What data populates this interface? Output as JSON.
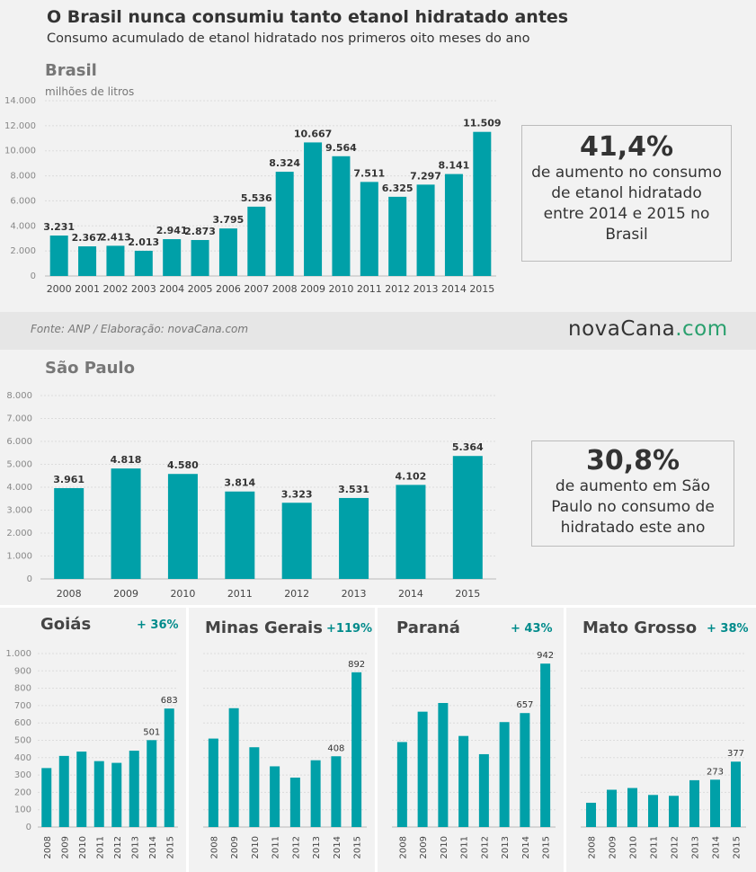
{
  "header": {
    "title": "O Brasil nunca consumiu tanto etanol hidratado antes",
    "subtitle": "Consumo acumulado de etanol hidratado nos primeros oito meses do ano"
  },
  "brasil": {
    "region": "Brasil",
    "unit": "milhões de litros",
    "callout": {
      "percent": "41,4%",
      "text": "de aumento no consumo de etanol hidratado entre 2014 e 2015 no Brasil"
    }
  },
  "source": {
    "text": "Fonte: ANP / Elaboração: novaCana.com",
    "logo_main": "novaCana",
    "logo_suffix": ".com"
  },
  "sao_paulo": {
    "region": "São Paulo",
    "callout": {
      "percent": "30,8%",
      "text": "de aumento em São Paulo no consumo de hidratado este ano"
    }
  },
  "small_panels": [
    {
      "region": "Goiás",
      "growth": "+ 36%"
    },
    {
      "region": "Minas Gerais",
      "growth": "+119%"
    },
    {
      "region": "Paraná",
      "growth": "+ 43%"
    },
    {
      "region": "Mato Grosso",
      "growth": "+ 38%"
    }
  ],
  "colors": {
    "bar": "#00a0a8",
    "panel": "#f2f2f2",
    "accent": "#008b8b",
    "logo_accent": "#2aa06e"
  },
  "chart_data": [
    {
      "type": "bar",
      "title": "Brasil",
      "ylabel": "milhões de litros",
      "categories": [
        "2000",
        "2001",
        "2002",
        "2003",
        "2004",
        "2005",
        "2006",
        "2007",
        "2008",
        "2009",
        "2010",
        "2011",
        "2012",
        "2013",
        "2014",
        "2015"
      ],
      "values": [
        3231,
        2367,
        2413,
        2013,
        2941,
        2873,
        3795,
        5536,
        8324,
        10667,
        9564,
        7511,
        6325,
        7297,
        8141,
        11509
      ],
      "value_labels": [
        "3.231",
        "2.367",
        "2.413",
        "2.013",
        "2.941",
        "2.873",
        "3.795",
        "5.536",
        "8.324",
        "10.667",
        "9.564",
        "7.511",
        "6.325",
        "7.297",
        "8.141",
        "11.509"
      ],
      "ylim": [
        0,
        14000
      ],
      "yticks": [
        0,
        2000,
        4000,
        6000,
        8000,
        10000,
        12000,
        14000
      ],
      "ytick_labels": [
        "0",
        "2.000",
        "4.000",
        "6.000",
        "8.000",
        "10.000",
        "12.000",
        "14.000"
      ],
      "grid": true
    },
    {
      "type": "bar",
      "title": "São Paulo",
      "categories": [
        "2008",
        "2009",
        "2010",
        "2011",
        "2012",
        "2013",
        "2014",
        "2015"
      ],
      "values": [
        3961,
        4818,
        4580,
        3814,
        3323,
        3531,
        4102,
        5364
      ],
      "value_labels": [
        "3.961",
        "4.818",
        "4.580",
        "3.814",
        "3.323",
        "3.531",
        "4.102",
        "5.364"
      ],
      "ylim": [
        0,
        8000
      ],
      "yticks": [
        0,
        1000,
        2000,
        3000,
        4000,
        5000,
        6000,
        7000,
        8000
      ],
      "ytick_labels": [
        "0",
        "1.000",
        "2.000",
        "3.000",
        "4.000",
        "5.000",
        "6.000",
        "7.000",
        "8.000"
      ],
      "grid": true
    },
    {
      "type": "bar",
      "title": "Goiás",
      "categories": [
        "2008",
        "2009",
        "2010",
        "2011",
        "2012",
        "2013",
        "2014",
        "2015"
      ],
      "values": [
        340,
        410,
        435,
        380,
        370,
        440,
        501,
        683
      ],
      "value_labels": [
        "",
        "",
        "",
        "",
        "",
        "",
        "501",
        "683"
      ],
      "ylim": [
        0,
        1000
      ],
      "yticks": [
        0,
        100,
        200,
        300,
        400,
        500,
        600,
        700,
        800,
        900,
        1000
      ],
      "ytick_labels": [
        "0",
        "100",
        "200",
        "300",
        "400",
        "500",
        "600",
        "700",
        "800",
        "900",
        "1.000"
      ],
      "grid": true
    },
    {
      "type": "bar",
      "title": "Minas Gerais",
      "categories": [
        "2008",
        "2009",
        "2010",
        "2011",
        "2012",
        "2013",
        "2014",
        "2015"
      ],
      "values": [
        510,
        685,
        460,
        350,
        285,
        385,
        408,
        892
      ],
      "value_labels": [
        "",
        "",
        "",
        "",
        "",
        "",
        "408",
        "892"
      ],
      "ylim": [
        0,
        1000
      ],
      "grid": true
    },
    {
      "type": "bar",
      "title": "Paraná",
      "categories": [
        "2008",
        "2009",
        "2010",
        "2011",
        "2012",
        "2013",
        "2014",
        "2015"
      ],
      "values": [
        490,
        665,
        715,
        525,
        420,
        605,
        657,
        942
      ],
      "value_labels": [
        "",
        "",
        "",
        "",
        "",
        "",
        "657",
        "942"
      ],
      "ylim": [
        0,
        1000
      ],
      "grid": true
    },
    {
      "type": "bar",
      "title": "Mato Grosso",
      "categories": [
        "2008",
        "2009",
        "2010",
        "2011",
        "2012",
        "2013",
        "2014",
        "2015"
      ],
      "values": [
        140,
        215,
        225,
        185,
        180,
        270,
        273,
        377
      ],
      "value_labels": [
        "",
        "",
        "",
        "",
        "",
        "",
        "273",
        "377"
      ],
      "ylim": [
        0,
        1000
      ],
      "grid": true
    }
  ]
}
